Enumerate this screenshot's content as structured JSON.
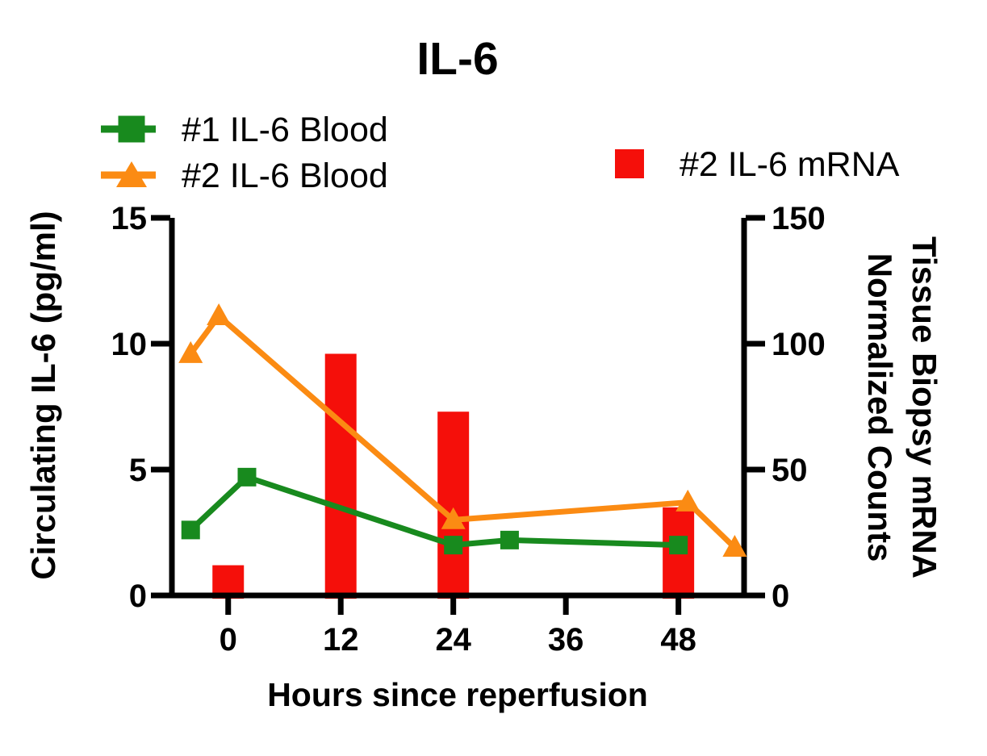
{
  "chart_data": {
    "type": "mixed",
    "title": "IL-6",
    "xlabel": "Hours since reperfusion",
    "ylabel_left": "Circulating IL-6 (pg/ml)",
    "ylabel_right_lines": [
      "Tissue Biopsy mRNA",
      "Normalized Counts"
    ],
    "x_axis": {
      "range": [
        -6,
        55
      ],
      "ticks": [
        0,
        12,
        24,
        36,
        48
      ]
    },
    "y_axis_left": {
      "range": [
        0,
        15
      ],
      "ticks": [
        0,
        5,
        10,
        15
      ]
    },
    "y_axis_right": {
      "range": [
        0,
        150
      ],
      "ticks": [
        0,
        50,
        100,
        150
      ]
    },
    "grid": false,
    "axis_color": "#000000",
    "legend_position": {
      "line_series": "top-left",
      "bar_series": "top-right"
    },
    "series": [
      {
        "name": "#1 IL-6 Blood",
        "type": "line",
        "axis": "left",
        "color": "#188a1e",
        "marker": "square",
        "points": [
          [
            -4,
            2.6
          ],
          [
            2,
            4.7
          ],
          [
            24,
            2.0
          ],
          [
            30,
            2.2
          ],
          [
            48,
            2.0
          ]
        ]
      },
      {
        "name": "#2 IL-6 Blood",
        "type": "line",
        "axis": "left",
        "color": "#fb8b13",
        "marker": "triangle",
        "points": [
          [
            -4,
            9.6
          ],
          [
            -1,
            11.1
          ],
          [
            24,
            3.0
          ],
          [
            49,
            3.7
          ],
          [
            54,
            1.9
          ]
        ]
      },
      {
        "name": "#2 IL-6 mRNA",
        "type": "bar",
        "axis": "right",
        "color": "#f50f0a",
        "marker": "square",
        "points": [
          [
            0,
            12
          ],
          [
            12,
            96
          ],
          [
            24,
            73
          ],
          [
            48,
            35
          ]
        ]
      }
    ]
  }
}
